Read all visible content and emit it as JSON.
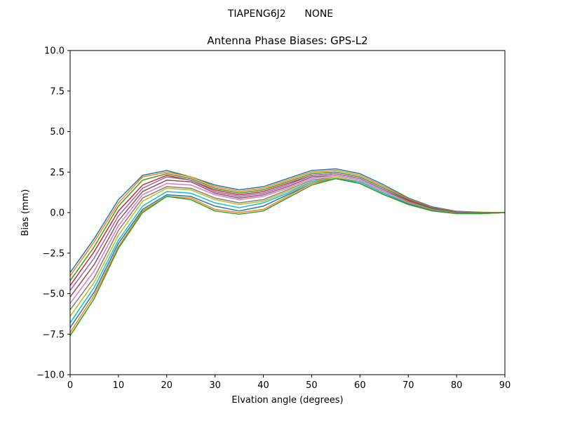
{
  "figure": {
    "suptitle_left": "TIAPENG6J2",
    "suptitle_right": "NONE"
  },
  "chart_data": {
    "type": "line",
    "title": "Antenna Phase Biases: GPS-L2",
    "xlabel": "Elvation angle (degrees)",
    "ylabel": "Bias (mm)",
    "xlim": [
      0,
      90
    ],
    "ylim": [
      -10,
      10
    ],
    "xticks": [
      0,
      10,
      20,
      30,
      40,
      50,
      60,
      70,
      80,
      90
    ],
    "yticks": [
      -10.0,
      -7.5,
      -5.0,
      -2.5,
      0.0,
      2.5,
      5.0,
      7.5,
      10.0
    ],
    "xtick_labels": [
      "0",
      "10",
      "20",
      "30",
      "40",
      "50",
      "60",
      "70",
      "80",
      "90"
    ],
    "ytick_labels": [
      "−10.0",
      "−7.5",
      "−5.0",
      "−2.5",
      "0.0",
      "2.5",
      "5.0",
      "7.5",
      "10.0"
    ],
    "grid": false,
    "legend": "none",
    "x": [
      0,
      5,
      10,
      15,
      20,
      25,
      30,
      35,
      40,
      45,
      50,
      55,
      60,
      65,
      70,
      75,
      80,
      85,
      90
    ],
    "series_colors": [
      "#1f77b4",
      "#ff7f0e",
      "#2ca02c",
      "#d62728",
      "#9467bd",
      "#8c564b",
      "#e377c2",
      "#7f7f7f",
      "#bcbd22",
      "#17becf"
    ],
    "series": [
      {
        "values": [
          -3.7,
          -1.6,
          0.8,
          2.3,
          2.6,
          2.2,
          1.7,
          1.4,
          1.6,
          2.1,
          2.6,
          2.7,
          2.4,
          1.7,
          0.9,
          0.35,
          0.08,
          0.02,
          0.0
        ]
      },
      {
        "values": [
          -3.9,
          -1.8,
          0.6,
          2.2,
          2.5,
          2.2,
          1.6,
          1.3,
          1.5,
          2.0,
          2.5,
          2.6,
          2.3,
          1.6,
          0.85,
          0.3,
          0.06,
          0.01,
          0.0
        ]
      },
      {
        "values": [
          -4.2,
          -2.1,
          0.4,
          2.0,
          2.4,
          2.1,
          1.5,
          1.2,
          1.4,
          1.9,
          2.4,
          2.5,
          2.2,
          1.5,
          0.8,
          0.28,
          0.04,
          0.0,
          0.0
        ]
      },
      {
        "values": [
          -4.5,
          -2.4,
          0.1,
          1.7,
          2.3,
          2.0,
          1.4,
          1.1,
          1.3,
          1.8,
          2.3,
          2.4,
          2.1,
          1.4,
          0.75,
          0.25,
          0.02,
          -0.02,
          0.0
        ]
      },
      {
        "values": [
          -4.8,
          -2.8,
          -0.2,
          1.5,
          2.2,
          2.0,
          1.3,
          1.0,
          1.2,
          1.7,
          2.3,
          2.4,
          2.1,
          1.4,
          0.7,
          0.22,
          0.0,
          -0.03,
          0.0
        ]
      },
      {
        "values": [
          -5.2,
          -3.2,
          -0.5,
          1.3,
          2.0,
          1.9,
          1.2,
          0.9,
          1.1,
          1.6,
          2.2,
          2.3,
          2.0,
          1.3,
          0.68,
          0.2,
          -0.02,
          -0.04,
          0.0
        ]
      },
      {
        "values": [
          -5.6,
          -3.6,
          -0.8,
          1.1,
          1.8,
          1.7,
          1.1,
          0.8,
          1.0,
          1.5,
          2.1,
          2.3,
          2.0,
          1.3,
          0.65,
          0.18,
          -0.03,
          -0.05,
          0.0
        ]
      },
      {
        "values": [
          -6.0,
          -4.0,
          -1.1,
          0.9,
          1.6,
          1.5,
          0.9,
          0.6,
          0.8,
          1.4,
          2.0,
          2.2,
          1.9,
          1.2,
          0.6,
          0.16,
          -0.04,
          -0.05,
          0.0
        ]
      },
      {
        "values": [
          -6.4,
          -4.3,
          -1.4,
          0.7,
          1.5,
          1.4,
          0.8,
          0.5,
          0.7,
          1.3,
          1.9,
          2.2,
          1.9,
          1.2,
          0.58,
          0.15,
          -0.05,
          -0.06,
          0.0
        ]
      },
      {
        "values": [
          -6.8,
          -4.6,
          -1.7,
          0.4,
          1.3,
          1.2,
          0.6,
          0.3,
          0.6,
          1.2,
          1.9,
          2.1,
          1.9,
          1.2,
          0.55,
          0.13,
          -0.05,
          -0.06,
          0.0
        ]
      },
      {
        "values": [
          -7.1,
          -4.9,
          -1.9,
          0.2,
          1.1,
          1.0,
          0.4,
          0.1,
          0.4,
          1.1,
          1.8,
          2.1,
          1.8,
          1.1,
          0.53,
          0.12,
          -0.06,
          -0.06,
          0.0
        ]
      },
      {
        "values": [
          -7.4,
          -5.1,
          -2.1,
          0.1,
          1.0,
          0.9,
          0.2,
          0.0,
          0.2,
          1.0,
          1.8,
          2.1,
          1.8,
          1.1,
          0.5,
          0.1,
          -0.06,
          -0.06,
          0.0
        ]
      },
      {
        "values": [
          -7.6,
          -5.3,
          -2.2,
          0.0,
          1.0,
          0.8,
          0.1,
          -0.1,
          0.1,
          0.9,
          1.7,
          2.1,
          1.8,
          1.1,
          0.5,
          0.1,
          -0.06,
          -0.06,
          0.0
        ]
      }
    ]
  }
}
